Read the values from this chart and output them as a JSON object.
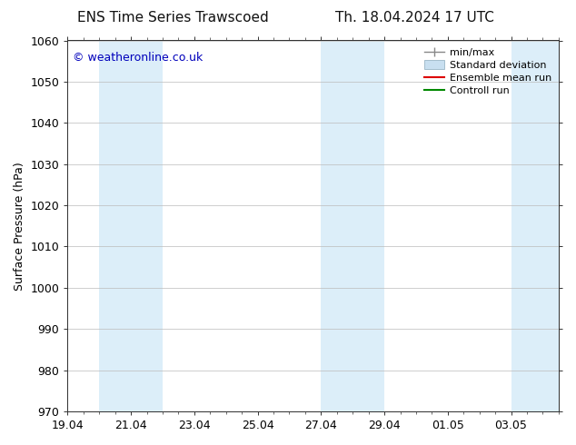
{
  "title_left": "ENS Time Series Trawscoed",
  "title_right": "Th. 18.04.2024 17 UTC",
  "ylabel": "Surface Pressure (hPa)",
  "ylim": [
    970,
    1060
  ],
  "yticks": [
    970,
    980,
    990,
    1000,
    1010,
    1020,
    1030,
    1040,
    1050,
    1060
  ],
  "xtick_labels": [
    "19.04",
    "21.04",
    "23.04",
    "25.04",
    "27.04",
    "29.04",
    "01.05",
    "03.05"
  ],
  "xtick_positions": [
    0,
    2,
    4,
    6,
    8,
    10,
    12,
    14
  ],
  "xlim": [
    0,
    15.5
  ],
  "shaded_bands": [
    {
      "x_start": 1.0,
      "x_end": 3.0
    },
    {
      "x_start": 8.0,
      "x_end": 10.0
    },
    {
      "x_start": 14.0,
      "x_end": 15.5
    }
  ],
  "shade_color": "#dceef9",
  "background_color": "#ffffff",
  "watermark_text": "© weatheronline.co.uk",
  "watermark_color": "#0000bb",
  "legend_items": [
    {
      "label": "min/max",
      "color": "#aaaaaa",
      "style": "errorbar"
    },
    {
      "label": "Standard deviation",
      "color": "#c8dff0",
      "style": "box"
    },
    {
      "label": "Ensemble mean run",
      "color": "#dd0000",
      "style": "line"
    },
    {
      "label": "Controll run",
      "color": "#008800",
      "style": "line"
    }
  ],
  "font_size_title": 11,
  "font_size_axis_label": 9,
  "font_size_tick": 9,
  "font_size_legend": 8,
  "font_size_watermark": 9
}
